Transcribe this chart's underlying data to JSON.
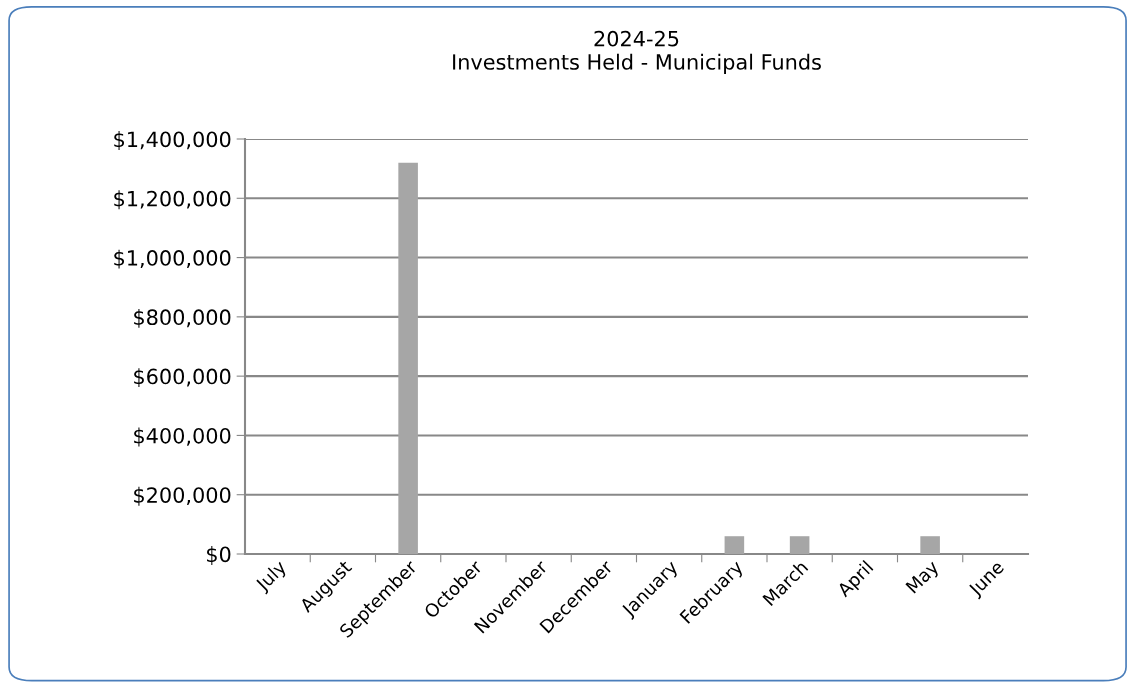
{
  "chart_data": {
    "type": "bar",
    "title": "2024-25\nInvestments Held - Municipal Funds",
    "categories": [
      "July",
      "August",
      "September",
      "October",
      "November",
      "December",
      "January",
      "February",
      "March",
      "April",
      "May",
      "June"
    ],
    "values": [
      0,
      0,
      1320000,
      0,
      0,
      0,
      0,
      60000,
      60000,
      null,
      60000,
      0
    ],
    "color": "#a6a6a6",
    "ylim": [
      0,
      1400000
    ],
    "yticks": [
      {
        "value": 0,
        "label": "$0"
      },
      {
        "value": 200000,
        "label": "$200,000"
      },
      {
        "value": 400000,
        "label": "$400,000"
      },
      {
        "value": 600000,
        "label": "$600,000"
      },
      {
        "value": 800000,
        "label": "$800,000"
      },
      {
        "value": 1000000,
        "label": "$1,000,000"
      },
      {
        "value": 1200000,
        "label": "$1,200,000"
      },
      {
        "value": 1400000,
        "label": "$1,400,000"
      }
    ],
    "grid": "y",
    "legend": false
  }
}
